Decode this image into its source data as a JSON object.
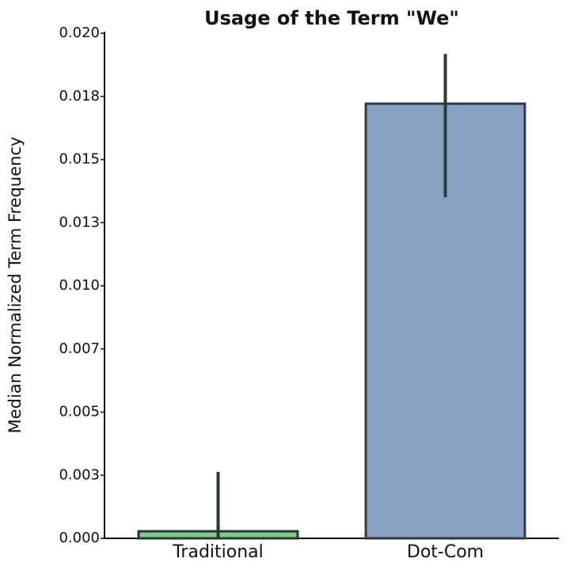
{
  "chart_data": {
    "type": "bar",
    "title": "Usage of the Term \"We\"",
    "y_label": "Median Normalized Term Frequency",
    "categories": [
      "Traditional",
      "Dot-Com"
    ],
    "values": [
      0.00028,
      0.01721
    ],
    "ci_low": [
      0,
      0.01351
    ],
    "ci_high": [
      0.00263,
      0.01918
    ],
    "colors": [
      "#7ec88c",
      "#89a1c3"
    ],
    "edge_colors": [
      "#263a2c",
      "#33383e"
    ],
    "ylim": [
      0,
      0.02
    ],
    "yticks": [
      {
        "value": 0,
        "label": "0.000"
      },
      {
        "value": 0.0025,
        "label": "0.003"
      },
      {
        "value": 0.005,
        "label": "0.005"
      },
      {
        "value": 0.0075,
        "label": "0.007"
      },
      {
        "value": 0.01,
        "label": "0.010"
      },
      {
        "value": 0.0125,
        "label": "0.013"
      },
      {
        "value": 0.015,
        "label": "0.015"
      },
      {
        "value": 0.0175,
        "label": "0.018"
      },
      {
        "value": 0.02,
        "label": "0.020"
      }
    ],
    "grid": false
  }
}
